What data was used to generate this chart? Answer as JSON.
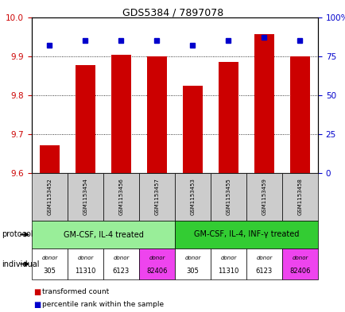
{
  "title": "GDS5384 / 7897078",
  "samples": [
    "GSM1153452",
    "GSM1153454",
    "GSM1153456",
    "GSM1153457",
    "GSM1153453",
    "GSM1153455",
    "GSM1153459",
    "GSM1153458"
  ],
  "red_values": [
    9.672,
    9.878,
    9.905,
    9.9,
    9.825,
    9.886,
    9.958,
    9.9
  ],
  "blue_values": [
    82,
    85,
    85,
    85,
    82,
    85,
    87,
    85
  ],
  "ylim_left": [
    9.6,
    10.0
  ],
  "ylim_right": [
    0,
    100
  ],
  "yticks_left": [
    9.6,
    9.7,
    9.8,
    9.9,
    10.0
  ],
  "yticks_right": [
    0,
    25,
    50,
    75,
    100
  ],
  "ytick_labels_right": [
    "0",
    "25",
    "50",
    "75",
    "100%"
  ],
  "red_color": "#cc0000",
  "blue_color": "#0000cc",
  "protocol_groups": [
    {
      "label": "GM-CSF, IL-4 treated",
      "color": "#99ee99"
    },
    {
      "label": "GM-CSF, IL-4, INF-γ treated",
      "color": "#33cc33"
    }
  ],
  "individual_labels": [
    "305",
    "11310",
    "6123",
    "82406",
    "305",
    "11310",
    "6123",
    "82406"
  ],
  "individual_colors": [
    "#ffffff",
    "#ffffff",
    "#ffffff",
    "#ee44ee",
    "#ffffff",
    "#ffffff",
    "#ffffff",
    "#ee44ee"
  ],
  "bar_bottom": 9.6,
  "sample_box_color": "#cccccc",
  "protocol_label": "protocol",
  "individual_label": "individual"
}
